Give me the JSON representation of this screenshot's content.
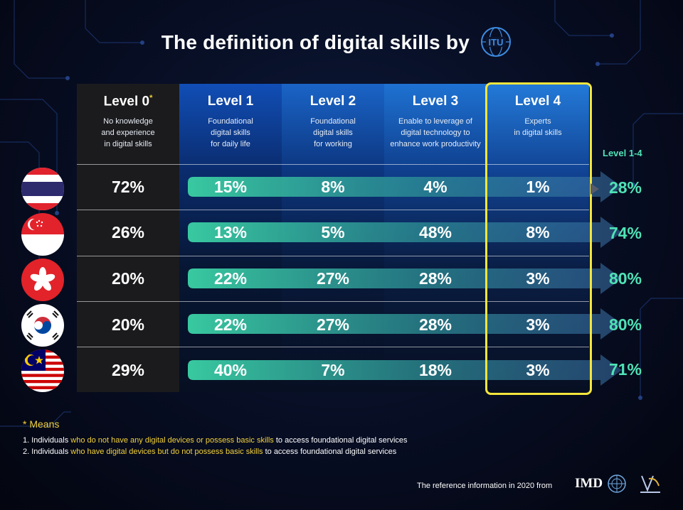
{
  "title": "The definition of digital skills by",
  "logo_itu": "ITU",
  "columns": [
    {
      "level": "Level 0",
      "star": "*",
      "desc": [
        "No knowledge",
        "and experience",
        "in digital skills"
      ]
    },
    {
      "level": "Level 1",
      "star": "",
      "desc": [
        "Foundational",
        "digital skills",
        "for daily life"
      ]
    },
    {
      "level": "Level 2",
      "star": "",
      "desc": [
        "Foundational",
        "digital skills",
        "for working"
      ]
    },
    {
      "level": "Level 3",
      "star": "",
      "desc": [
        "Enable to leverage of",
        "digital technology to",
        "enhance work productivity"
      ]
    },
    {
      "level": "Level 4",
      "star": "",
      "desc": [
        "Experts",
        "in digital skills"
      ]
    }
  ],
  "level14_header": "Level 1-4",
  "rows": [
    {
      "flag": "thailand-flag",
      "values": [
        "72%",
        "15%",
        "8%",
        "4%",
        "1%"
      ],
      "total": "28%"
    },
    {
      "flag": "singapore-flag",
      "values": [
        "26%",
        "13%",
        "5%",
        "48%",
        "8%"
      ],
      "total": "74%"
    },
    {
      "flag": "hong-kong-flag",
      "values": [
        "20%",
        "22%",
        "27%",
        "28%",
        "3%"
      ],
      "total": "80%"
    },
    {
      "flag": "south-korea-flag",
      "values": [
        "20%",
        "22%",
        "27%",
        "28%",
        "3%"
      ],
      "total": "80%"
    },
    {
      "flag": "malaysia-flag",
      "values": [
        "29%",
        "40%",
        "7%",
        "18%",
        "3%"
      ],
      "total": "71%"
    }
  ],
  "means": {
    "heading": "* Means",
    "notes": [
      {
        "pre": "1. Individuals ",
        "hl": "who do not have any digital devices or possess basic skills",
        "post": " to access foundational digital services"
      },
      {
        "pre": "2. Individuals ",
        "hl": "who have digital devices but do not possess basic skills",
        "post": " to access foundational digital services"
      }
    ]
  },
  "reference": "The reference information in 2020 from",
  "footer_logos": [
    "IMD",
    "un-logo",
    "partner-logo"
  ],
  "colors": {
    "accent_green": "#4fe3b5",
    "highlight_yellow": "#f5e63c",
    "star_yellow": "#f3d23a"
  }
}
